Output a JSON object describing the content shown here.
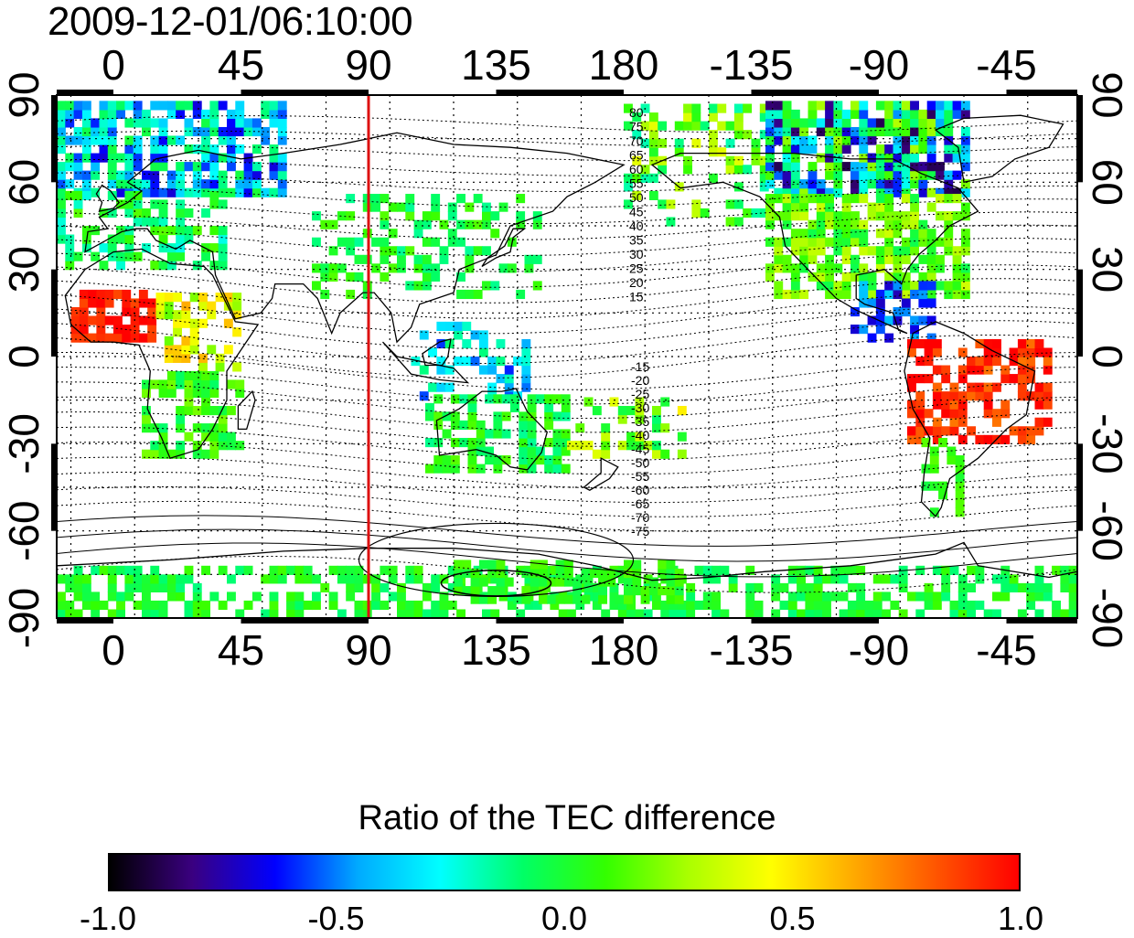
{
  "title": "2009-12-01/06:10:00",
  "map": {
    "lon_ticks_top": [
      "0",
      "45",
      "90",
      "135",
      "180",
      "-135",
      "-90",
      "-45"
    ],
    "lon_ticks_bottom": [
      "0",
      "45",
      "90",
      "135",
      "180",
      "-135",
      "-90",
      "-45"
    ],
    "lat_ticks_left": [
      "90",
      "60",
      "30",
      "0",
      "-30",
      "-60",
      "-90"
    ],
    "lat_ticks_right": [
      "90",
      "60",
      "30",
      "0",
      "-30",
      "-60",
      "-90"
    ],
    "lon_range": [
      -20,
      340
    ],
    "lat_range": [
      -90,
      90
    ],
    "marker_meridian_lon": 90,
    "marker_color": "#dd1111",
    "contour_labels_north": [
      "80",
      "75",
      "70",
      "65",
      "60",
      "55",
      "50",
      "45",
      "40",
      "35",
      "30",
      "25",
      "20",
      "15"
    ],
    "contour_labels_south": [
      "-15",
      "-20",
      "-25",
      "-30",
      "-35",
      "-40",
      "-45",
      "-50",
      "-55",
      "-60",
      "-65",
      "-70",
      "-75"
    ]
  },
  "colorbar": {
    "title": "Ratio of the TEC difference",
    "labels": [
      "-1.0",
      "-0.5",
      "0.0",
      "0.5",
      "1.0"
    ],
    "range": [
      -1.0,
      1.0
    ],
    "colors": [
      "#000000",
      "#3a0080",
      "#0000ff",
      "#00aaff",
      "#00ffff",
      "#00ff66",
      "#33ff00",
      "#aaff00",
      "#ffff00",
      "#ffaa00",
      "#ff5500",
      "#ff0000"
    ]
  }
}
